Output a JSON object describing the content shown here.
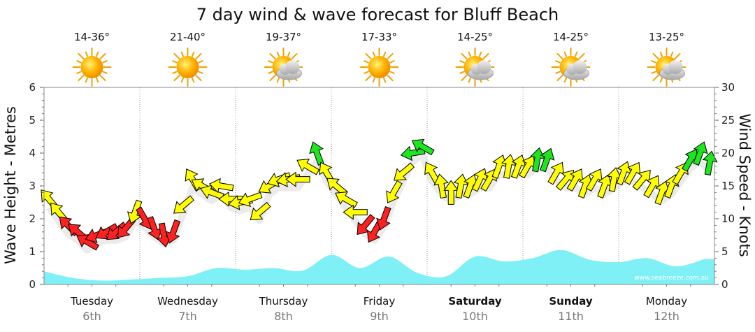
{
  "chart_data": {
    "type": "line",
    "title": "7 day wind & wave forecast for Bluff Beach",
    "y_left_label": "Wave Height - Metres",
    "y_right_label": "Wind Speed - Knots",
    "y_left_range": [
      0,
      6
    ],
    "y_right_range": [
      0,
      30
    ],
    "y_left_ticks": [
      "0",
      "1",
      "2",
      "3",
      "4",
      "5",
      "6"
    ],
    "y_right_ticks": [
      "0",
      "5",
      "10",
      "15",
      "20",
      "25",
      "30"
    ],
    "grid": "dotted vertical at day boundaries",
    "days": [
      {
        "name": "Tuesday",
        "date": "6th",
        "bold": false,
        "temp": "14-36°",
        "icon": "sun-icon"
      },
      {
        "name": "Wednesday",
        "date": "7th",
        "bold": false,
        "temp": "21-40°",
        "icon": "sun-icon"
      },
      {
        "name": "Thursday",
        "date": "8th",
        "bold": false,
        "temp": "19-37°",
        "icon": "sun-cloud-icon"
      },
      {
        "name": "Friday",
        "date": "9th",
        "bold": false,
        "temp": "17-33°",
        "icon": "sun-icon"
      },
      {
        "name": "Saturday",
        "date": "10th",
        "bold": true,
        "temp": "14-25°",
        "icon": "sun-cloud-icon"
      },
      {
        "name": "Sunday",
        "date": "11th",
        "bold": true,
        "temp": "14-25°",
        "icon": "sun-cloud-icon"
      },
      {
        "name": "Monday",
        "date": "12th",
        "bold": false,
        "temp": "13-25°",
        "icon": "sun-cloud-icon"
      }
    ],
    "series": [
      {
        "name": "Wave Height",
        "axis": "left",
        "color": "#7ff0f5",
        "x": [
          0,
          0.3,
          0.6,
          0.9,
          1.2,
          1.5,
          1.8,
          2.1,
          2.4,
          2.7,
          3.0,
          3.3,
          3.6,
          3.9,
          4.2,
          4.5,
          4.8,
          5.1,
          5.4,
          5.7,
          6.0,
          6.3,
          6.6,
          6.9
        ],
        "values": [
          0.4,
          0.2,
          0.12,
          0.15,
          0.2,
          0.25,
          0.5,
          0.45,
          0.5,
          0.42,
          0.9,
          0.5,
          0.85,
          0.35,
          0.25,
          0.85,
          0.7,
          0.8,
          1.05,
          0.75,
          0.68,
          0.8,
          0.55,
          0.78
        ]
      },
      {
        "name": "Wind Speed",
        "axis": "right",
        "x": [
          0,
          0.1,
          0.2,
          0.3,
          0.4,
          0.5,
          0.6,
          0.7,
          0.8,
          0.9,
          1.0,
          1.1,
          1.2,
          1.3,
          1.4,
          1.5,
          1.6,
          1.7,
          1.8,
          1.9,
          2.0,
          2.1,
          2.2,
          2.3,
          2.4,
          2.5,
          2.6,
          2.7,
          2.8,
          2.9,
          3.0,
          3.1,
          3.2,
          3.3,
          3.4,
          3.5,
          3.6,
          3.7,
          3.8,
          3.9,
          4.0,
          4.1,
          4.2,
          4.3,
          4.4,
          4.5,
          4.6,
          4.7,
          4.8,
          4.9,
          5.0,
          5.1,
          5.2,
          5.3,
          5.4,
          5.5,
          5.6,
          5.7,
          5.8,
          5.9,
          6.0,
          6.1,
          6.2,
          6.3,
          6.4,
          6.5,
          6.6,
          6.7,
          6.8,
          6.9
        ],
        "values": [
          13,
          11,
          9,
          8,
          6.5,
          7.5,
          8,
          8,
          8.5,
          11,
          10,
          8.5,
          7.5,
          8,
          12,
          16,
          15,
          14,
          15,
          13,
          12.5,
          13,
          11,
          15,
          16,
          16,
          16,
          18,
          20,
          17,
          15,
          13,
          11,
          9,
          8,
          10,
          14,
          17,
          20,
          21,
          17,
          15,
          14,
          15,
          15,
          16,
          16,
          18,
          18,
          18,
          18,
          19,
          19,
          17,
          16,
          16,
          15,
          16,
          15,
          16,
          17,
          17,
          16,
          15,
          14,
          15,
          17,
          19,
          20,
          18.5
        ],
        "direction_deg": [
          320,
          320,
          315,
          310,
          300,
          250,
          240,
          230,
          220,
          200,
          150,
          160,
          170,
          200,
          230,
          330,
          300,
          290,
          280,
          270,
          260,
          250,
          230,
          240,
          250,
          260,
          270,
          300,
          340,
          330,
          310,
          300,
          270,
          220,
          210,
          200,
          210,
          230,
          260,
          300,
          330,
          350,
          0,
          10,
          20,
          25,
          30,
          20,
          10,
          20,
          30,
          10,
          20,
          30,
          40,
          30,
          20,
          30,
          20,
          10,
          20,
          30,
          40,
          30,
          20,
          20,
          30,
          30,
          20,
          10
        ],
        "color_scale": [
          {
            "max": 10,
            "color": "#ff2020"
          },
          {
            "max": 18,
            "color": "#ffff00"
          },
          {
            "max": 99,
            "color": "#1ee61e"
          }
        ]
      }
    ],
    "credit": "www.seabreeze.com.au"
  }
}
